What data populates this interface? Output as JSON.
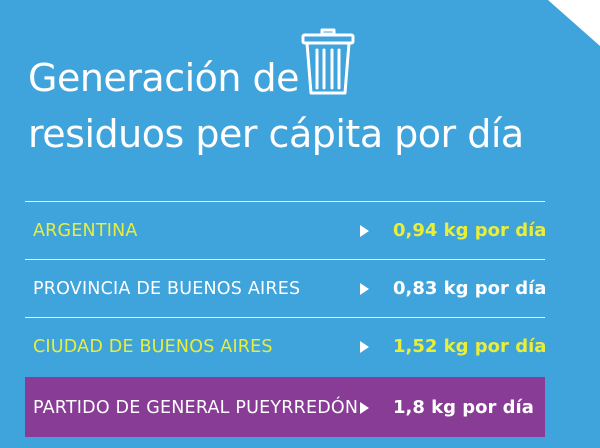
{
  "title": {
    "line1": "Generación de",
    "line2": "residuos per cápita por día"
  },
  "icon": "trash-can-icon",
  "colors": {
    "background": "#3fa3dc",
    "highlight": "#883c96",
    "accent_yellow": "#e9ee3a",
    "text_white": "#ffffff"
  },
  "rows": [
    {
      "label": "ARGENTINA",
      "value": "0,94 kg por día"
    },
    {
      "label": "PROVINCIA DE BUENOS AIRES",
      "value": "0,83 kg por día"
    },
    {
      "label": "CIUDAD DE BUENOS AIRES",
      "value": "1,52 kg por día"
    },
    {
      "label": "PARTIDO DE GENERAL PUEYRREDÓN",
      "value": "1,8 kg por día"
    }
  ]
}
